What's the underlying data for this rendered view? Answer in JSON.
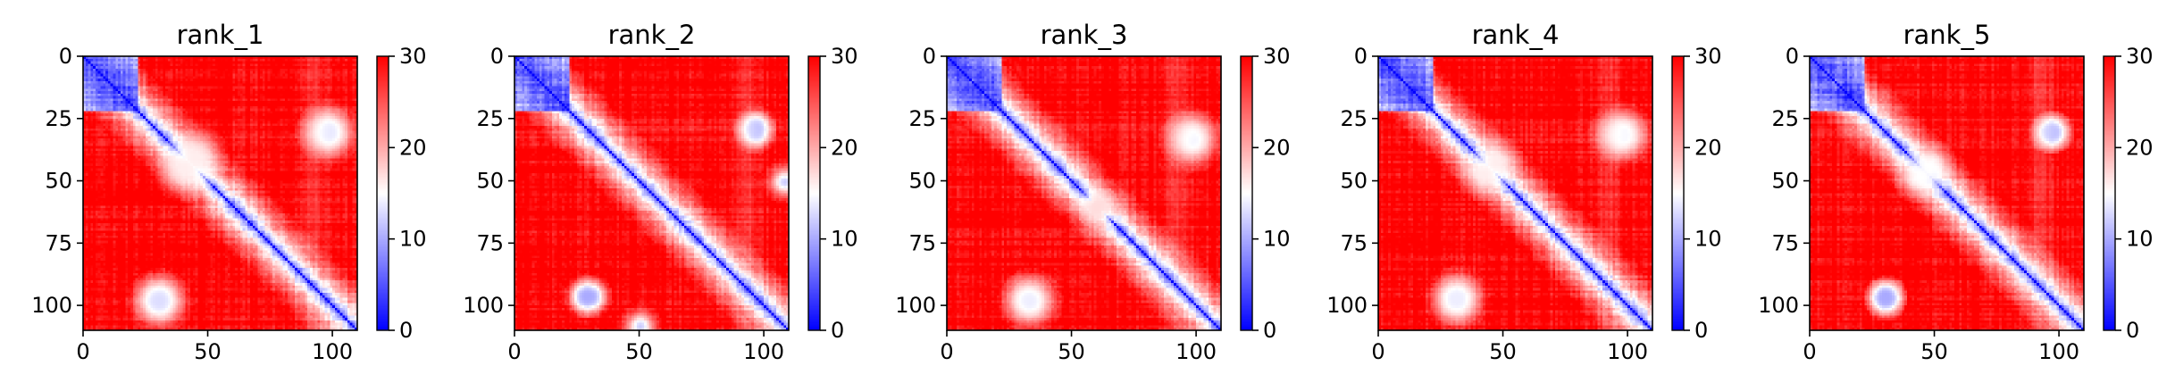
{
  "chart_data": {
    "type": "heatmap",
    "colormap": {
      "name": "bwr",
      "low": "#0000ff",
      "mid": "#ffffff",
      "high": "#ff0000"
    },
    "vmin": 0,
    "vmax": 30,
    "n": 110,
    "xlim": [
      0,
      110
    ],
    "ylim": [
      110,
      0
    ],
    "xticks": [
      0,
      50,
      100
    ],
    "yticks": [
      0,
      25,
      50,
      75,
      100
    ],
    "colorbar_ticks": [
      0,
      10,
      20,
      30
    ],
    "panels": [
      {
        "title": "rank_1",
        "blobs": [
          {
            "x": 97,
            "y": 30,
            "r": 5,
            "v": 15
          },
          {
            "x": 30,
            "y": 98,
            "r": 6,
            "v": 13
          },
          {
            "x": 40,
            "y": 45,
            "r": 6,
            "v": 16
          }
        ]
      },
      {
        "title": "rank_2",
        "blobs": [
          {
            "x": 96,
            "y": 28,
            "r": 4,
            "v": 10
          },
          {
            "x": 30,
            "y": 96,
            "r": 4,
            "v": 10
          },
          {
            "x": 108,
            "y": 50,
            "r": 4,
            "v": 12
          }
        ]
      },
      {
        "title": "rank_3",
        "blobs": [
          {
            "x": 97,
            "y": 32,
            "r": 5,
            "v": 16
          },
          {
            "x": 33,
            "y": 98,
            "r": 6,
            "v": 14
          },
          {
            "x": 60,
            "y": 60,
            "r": 4,
            "v": 17
          }
        ]
      },
      {
        "title": "rank_4",
        "blobs": [
          {
            "x": 97,
            "y": 31,
            "r": 5,
            "v": 14
          },
          {
            "x": 31,
            "y": 97,
            "r": 6,
            "v": 14
          },
          {
            "x": 42,
            "y": 47,
            "r": 5,
            "v": 16
          }
        ]
      },
      {
        "title": "rank_5",
        "blobs": [
          {
            "x": 96,
            "y": 30,
            "r": 4,
            "v": 9
          },
          {
            "x": 30,
            "y": 97,
            "r": 4,
            "v": 10
          },
          {
            "x": 44,
            "y": 48,
            "r": 5,
            "v": 15
          }
        ]
      }
    ]
  }
}
